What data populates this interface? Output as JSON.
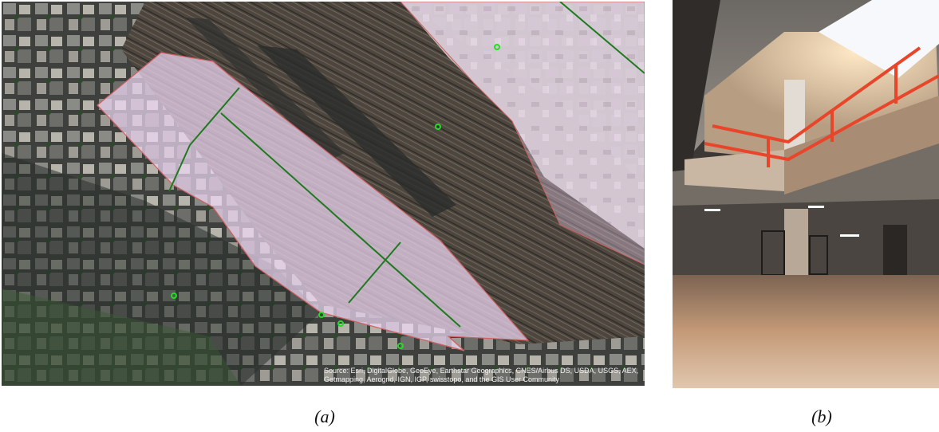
{
  "figure": {
    "panels": [
      {
        "id": "a",
        "caption": "(a)",
        "kind": "satellite-map",
        "attribution": {
          "line1": "Source: Esri, DigitalGlobe, GeoEye, Earthstar Geographics, CNES/Airbus DS, USDA, USGS, AEX,",
          "line2": "Getmapping, Aerogrid, IGN, IGP, swisstopo, and the GIS User Community"
        },
        "colors": {
          "site_fill": "#f0d8f5",
          "site_outline": "#d06060",
          "survey_line": "#1f7a1f",
          "marker": "#22dd22",
          "imagery_base": "#3a3a36",
          "tracks": "#5a4e42"
        },
        "markers_count": 6
      },
      {
        "id": "b",
        "caption": "(b)",
        "kind": "photograph",
        "subject": "underground concrete space with red railings and skylight",
        "colors": {
          "concrete": "#8a8580",
          "floor": "#c49a78",
          "railing": "#e8452a",
          "skylight": "#f6f8fb"
        }
      }
    ]
  }
}
